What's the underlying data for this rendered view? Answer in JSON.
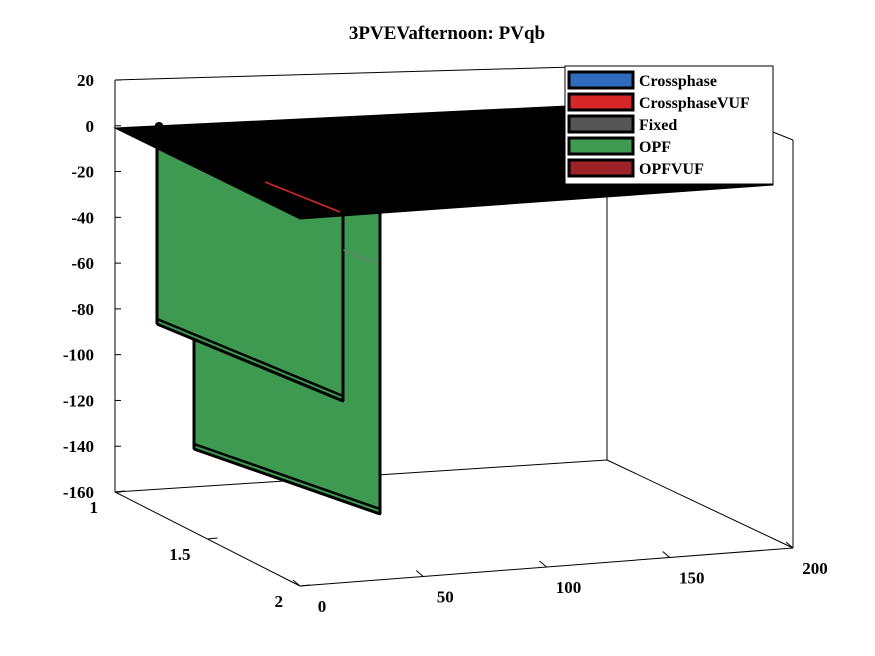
{
  "chart_data": {
    "type": "area3d",
    "title": "3PVEVafternoon: PVqb",
    "xlabel": "",
    "ylabel": "",
    "zlabel": "",
    "xlim": [
      0,
      200
    ],
    "ylim": [
      1,
      2
    ],
    "zlim": [
      -160,
      20
    ],
    "x_ticks": [
      "0",
      "50",
      "100",
      "150",
      "200"
    ],
    "y_ticks": [
      "1",
      "1.5",
      "2"
    ],
    "z_ticks": [
      "20",
      "0",
      "-20",
      "-40",
      "-60",
      "-80",
      "-100",
      "-120",
      "-140",
      "-160"
    ],
    "grid": false,
    "legend_position": "top-right",
    "series": [
      {
        "name": "Crossphase",
        "color": "#2f6bbd"
      },
      {
        "name": "CrossphaseVUF",
        "color": "#d62728"
      },
      {
        "name": "Fixed",
        "color": "#555555"
      },
      {
        "name": "OPF",
        "color": "#3d9a50"
      },
      {
        "name": "OPFVUF",
        "color": "#9b2226"
      }
    ]
  }
}
